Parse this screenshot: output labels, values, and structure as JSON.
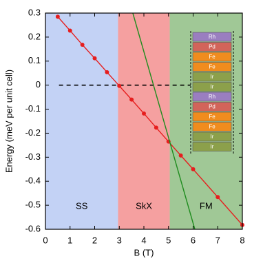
{
  "chart_data": {
    "type": "line",
    "xlabel": "B (T)",
    "ylabel": "Energy (meV per unit cell)",
    "xlim": [
      0,
      8
    ],
    "ylim": [
      -0.6,
      0.3
    ],
    "xticks": [
      0,
      1,
      2,
      3,
      4,
      5,
      6,
      7,
      8
    ],
    "yticks": [
      0.3,
      0.2,
      0.1,
      0,
      -0.1,
      -0.2,
      -0.3,
      -0.4,
      -0.5,
      -0.6
    ],
    "reference_line": 0,
    "regions": [
      {
        "label": "SS",
        "range": [
          0,
          2.95
        ],
        "color": "#c3d2f5"
      },
      {
        "label": "SkX",
        "range": [
          2.95,
          5.05
        ],
        "color": "#f5a0a0"
      },
      {
        "label": "FM",
        "range": [
          5.05,
          8
        ],
        "color": "#a0c896"
      }
    ],
    "series": [
      {
        "color": "#e61e1e",
        "markers": true,
        "x": [
          0.5,
          1,
          1.5,
          2,
          2.5,
          3,
          3.5,
          4,
          4.5,
          5,
          5.5,
          6,
          7,
          8
        ],
        "values": [
          0.285,
          0.227,
          0.168,
          0.112,
          0.054,
          -0.003,
          -0.06,
          -0.118,
          -0.177,
          -0.235,
          -0.293,
          -0.35,
          -0.466,
          -0.582
        ]
      },
      {
        "color": "#1e8c1e",
        "markers": false,
        "x": [
          3.55,
          6.07
        ],
        "values": [
          0.3,
          -0.6
        ]
      }
    ],
    "inset_layers": [
      {
        "label": "Rh",
        "color": "#9a7ec0"
      },
      {
        "label": "Pd",
        "color": "#d2645a"
      },
      {
        "label": "Fe",
        "color": "#f08c1e"
      },
      {
        "label": "Fe",
        "color": "#f08c1e"
      },
      {
        "label": "Ir",
        "color": "#8ca04b"
      },
      {
        "label": "Ir",
        "color": "#8ca04b"
      },
      {
        "label": "Rh",
        "color": "#9a7ec0"
      },
      {
        "label": "Pd",
        "color": "#d2645a"
      },
      {
        "label": "Fe",
        "color": "#f08c1e"
      },
      {
        "label": "Fe",
        "color": "#f08c1e"
      },
      {
        "label": "Ir",
        "color": "#8ca04b"
      },
      {
        "label": "Ir",
        "color": "#8ca04b"
      }
    ]
  }
}
